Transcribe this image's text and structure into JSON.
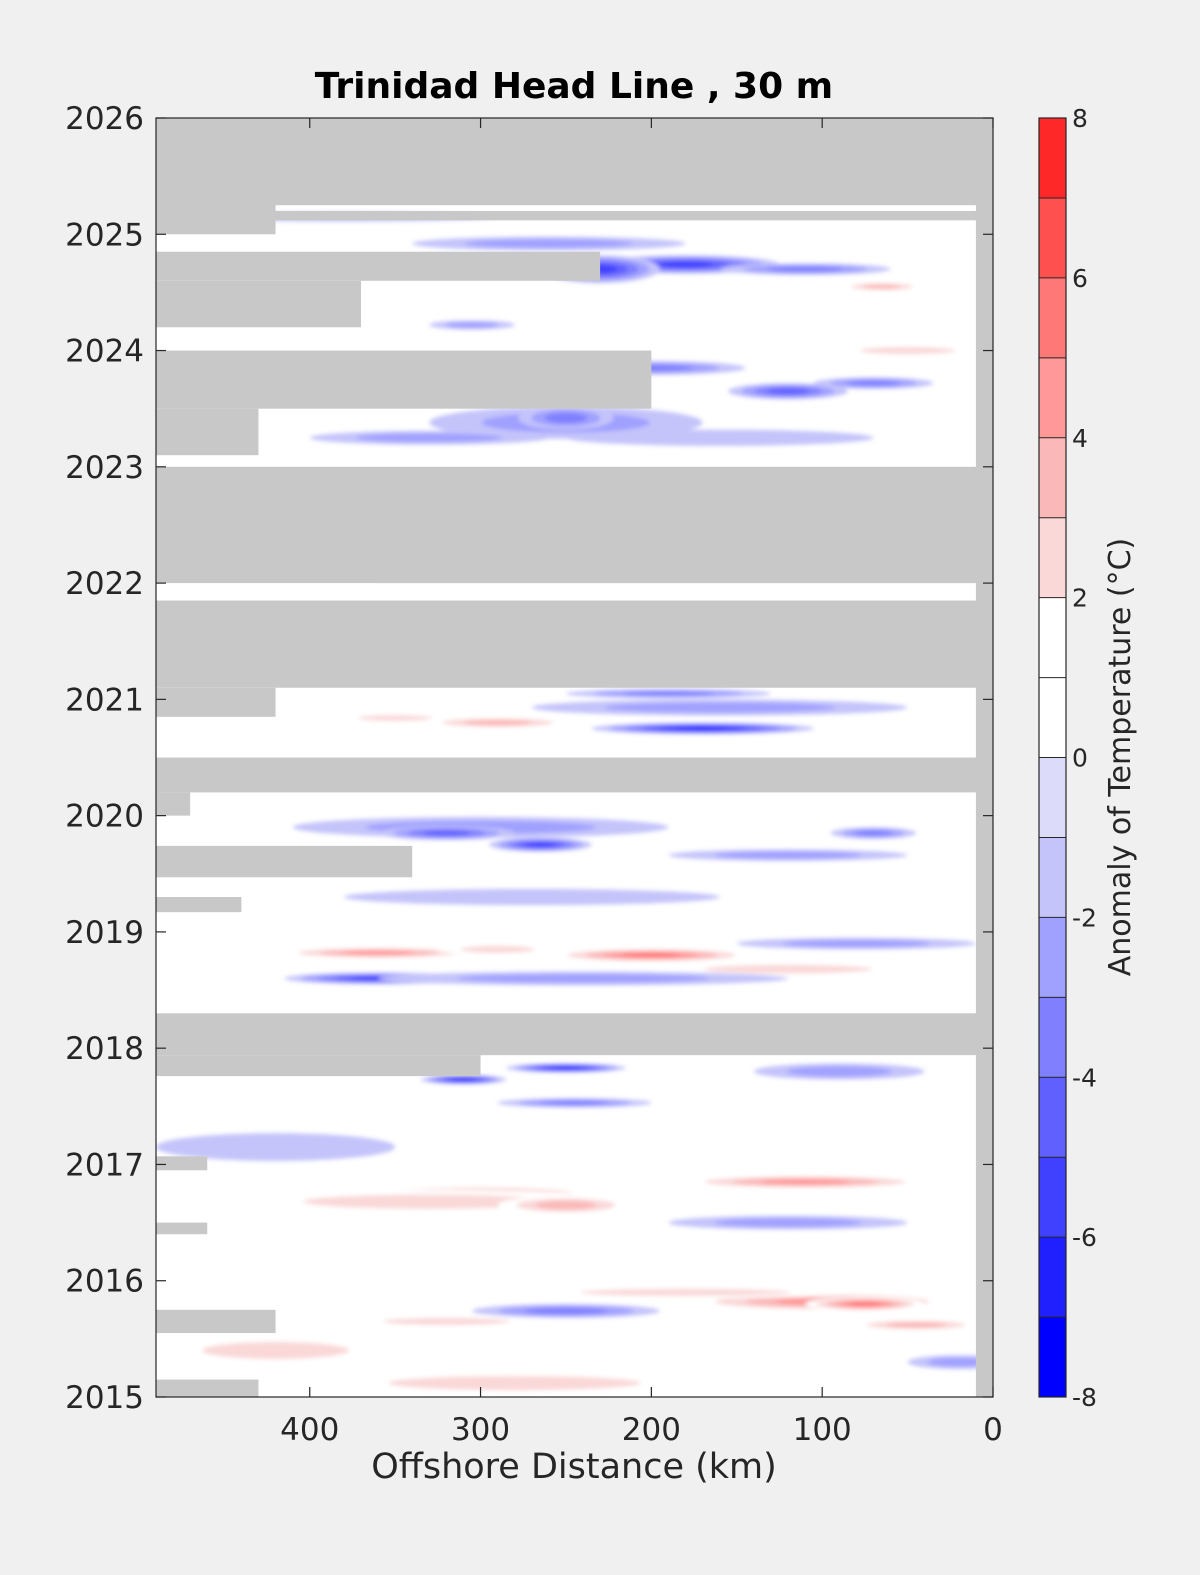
{
  "chart_data": {
    "type": "heatmap",
    "title": "Trinidad Head Line , 30 m",
    "xlabel": "Offshore Distance (km)",
    "ylabel": "",
    "colorbar_label": "Anomaly of Temperature (°C)",
    "xlim": [
      490,
      0
    ],
    "x_reversed": true,
    "ylim": [
      2015,
      2026
    ],
    "xticks": [
      400,
      300,
      200,
      100,
      0
    ],
    "yticks": [
      2015,
      2016,
      2017,
      2018,
      2019,
      2020,
      2021,
      2022,
      2023,
      2024,
      2025,
      2026
    ],
    "colorbar": {
      "range": [
        -8,
        8
      ],
      "ticks": [
        -8,
        -6,
        -4,
        -2,
        0,
        2,
        4,
        6,
        8
      ],
      "levels": [
        -8,
        -7,
        -6,
        -5,
        -4,
        -3,
        -2,
        -1,
        0,
        1,
        2,
        3,
        4,
        5,
        6,
        7,
        8
      ],
      "colors": [
        "#0000ff",
        "#2020ff",
        "#4040ff",
        "#6060ff",
        "#8080ff",
        "#a0a0ff",
        "#c4c4fb",
        "#dcdcfa",
        "#ffffff",
        "#ffffff",
        "#fad8d8",
        "#fbb8b8",
        "#ff9898",
        "#ff7878",
        "#ff5050",
        "#ff2828",
        "#ff0000"
      ]
    },
    "no_data_color": "#c8c8c8",
    "no_data_regions": [
      {
        "t0": 2025.25,
        "t1": 2026.0,
        "x0": 490,
        "x1": 0
      },
      {
        "t0": 2025.0,
        "t1": 2025.3,
        "x0": 490,
        "x1": 420
      },
      {
        "t0": 2025.12,
        "t1": 2025.2,
        "x0": 420,
        "x1": 0
      },
      {
        "t0": 2024.6,
        "t1": 2024.85,
        "x0": 490,
        "x1": 230
      },
      {
        "t0": 2024.2,
        "t1": 2024.6,
        "x0": 490,
        "x1": 370
      },
      {
        "t0": 2023.5,
        "t1": 2024.0,
        "x0": 490,
        "x1": 200
      },
      {
        "t0": 2023.1,
        "t1": 2023.5,
        "x0": 490,
        "x1": 430
      },
      {
        "t0": 2022.0,
        "t1": 2023.0,
        "x0": 490,
        "x1": 0
      },
      {
        "t0": 2022.0,
        "t1": 2022.05,
        "x0": 360,
        "x1": 0
      },
      {
        "t0": 2021.1,
        "t1": 2021.85,
        "x0": 490,
        "x1": 0
      },
      {
        "t0": 2020.85,
        "t1": 2021.1,
        "x0": 490,
        "x1": 420
      },
      {
        "t0": 2020.2,
        "t1": 2020.5,
        "x0": 490,
        "x1": 0
      },
      {
        "t0": 2020.0,
        "t1": 2020.2,
        "x0": 490,
        "x1": 470
      },
      {
        "t0": 2019.47,
        "t1": 2019.74,
        "x0": 490,
        "x1": 340
      },
      {
        "t0": 2019.17,
        "t1": 2019.3,
        "x0": 490,
        "x1": 440
      },
      {
        "t0": 2017.94,
        "t1": 2018.3,
        "x0": 490,
        "x1": 0
      },
      {
        "t0": 2017.76,
        "t1": 2017.94,
        "x0": 490,
        "x1": 300
      },
      {
        "t0": 2016.95,
        "t1": 2017.07,
        "x0": 490,
        "x1": 460
      },
      {
        "t0": 2016.4,
        "t1": 2016.5,
        "x0": 490,
        "x1": 460
      },
      {
        "t0": 2015.55,
        "t1": 2015.75,
        "x0": 490,
        "x1": 420
      },
      {
        "t0": 2015.0,
        "t1": 2015.15,
        "x0": 490,
        "x1": 430
      },
      {
        "t0": 2015.0,
        "t1": 2026.0,
        "x0": 10,
        "x1": 0
      }
    ],
    "anomaly_blobs": [
      {
        "x": 380,
        "t": 2025.15,
        "rx": 90,
        "rt": 0.04,
        "v": -1
      },
      {
        "x": 260,
        "t": 2024.92,
        "rx": 80,
        "rt": 0.06,
        "v": -2
      },
      {
        "x": 180,
        "t": 2024.74,
        "rx": 55,
        "rt": 0.08,
        "v": -5
      },
      {
        "x": 230,
        "t": 2024.7,
        "rx": 35,
        "rt": 0.12,
        "v": -5
      },
      {
        "x": 110,
        "t": 2024.7,
        "rx": 50,
        "rt": 0.05,
        "v": -3
      },
      {
        "x": 65,
        "t": 2024.55,
        "rx": 25,
        "rt": 0.04,
        "v": 3
      },
      {
        "x": 305,
        "t": 2024.22,
        "rx": 25,
        "rt": 0.04,
        "v": -2
      },
      {
        "x": 50,
        "t": 2024.0,
        "rx": 45,
        "rt": 0.05,
        "v": 2
      },
      {
        "x": 200,
        "t": 2023.85,
        "rx": 55,
        "rt": 0.06,
        "v": -3
      },
      {
        "x": 120,
        "t": 2023.65,
        "rx": 35,
        "rt": 0.07,
        "v": -4
      },
      {
        "x": 70,
        "t": 2023.72,
        "rx": 35,
        "rt": 0.05,
        "v": -3
      },
      {
        "x": 250,
        "t": 2023.38,
        "rx": 80,
        "rt": 0.14,
        "v": -2
      },
      {
        "x": 330,
        "t": 2023.25,
        "rx": 70,
        "rt": 0.06,
        "v": -2
      },
      {
        "x": 160,
        "t": 2023.25,
        "rx": 90,
        "rt": 0.07,
        "v": -1
      },
      {
        "x": 250,
        "t": 2023.42,
        "rx": 28,
        "rt": 0.1,
        "v": -3
      },
      {
        "x": 80,
        "t": 2021.65,
        "rx": 35,
        "rt": 0.06,
        "v": -3
      },
      {
        "x": 190,
        "t": 2021.05,
        "rx": 60,
        "rt": 0.04,
        "v": -3
      },
      {
        "x": 160,
        "t": 2020.93,
        "rx": 110,
        "rt": 0.07,
        "v": -2
      },
      {
        "x": 170,
        "t": 2020.75,
        "rx": 65,
        "rt": 0.05,
        "v": -6
      },
      {
        "x": 350,
        "t": 2020.84,
        "rx": 35,
        "rt": 0.04,
        "v": 2
      },
      {
        "x": 290,
        "t": 2020.8,
        "rx": 45,
        "rt": 0.05,
        "v": 3
      },
      {
        "x": 300,
        "t": 2019.9,
        "rx": 110,
        "rt": 0.09,
        "v": -2
      },
      {
        "x": 320,
        "t": 2019.85,
        "rx": 40,
        "rt": 0.06,
        "v": -4
      },
      {
        "x": 265,
        "t": 2019.75,
        "rx": 30,
        "rt": 0.06,
        "v": -5
      },
      {
        "x": 120,
        "t": 2019.66,
        "rx": 70,
        "rt": 0.05,
        "v": -2
      },
      {
        "x": 70,
        "t": 2019.85,
        "rx": 25,
        "rt": 0.05,
        "v": -3
      },
      {
        "x": 270,
        "t": 2019.3,
        "rx": 110,
        "rt": 0.07,
        "v": -1
      },
      {
        "x": 360,
        "t": 2018.82,
        "rx": 60,
        "rt": 0.05,
        "v": 4
      },
      {
        "x": 200,
        "t": 2018.8,
        "rx": 60,
        "rt": 0.06,
        "v": 5
      },
      {
        "x": 290,
        "t": 2018.85,
        "rx": 35,
        "rt": 0.05,
        "v": 2
      },
      {
        "x": 120,
        "t": 2018.68,
        "rx": 80,
        "rt": 0.06,
        "v": 2
      },
      {
        "x": 80,
        "t": 2018.9,
        "rx": 70,
        "rt": 0.05,
        "v": -2
      },
      {
        "x": 360,
        "t": 2018.6,
        "rx": 55,
        "rt": 0.05,
        "v": -5
      },
      {
        "x": 270,
        "t": 2018.6,
        "rx": 55,
        "rt": 0.05,
        "v": -4
      },
      {
        "x": 240,
        "t": 2018.6,
        "rx": 120,
        "rt": 0.06,
        "v": -2
      },
      {
        "x": 250,
        "t": 2017.83,
        "rx": 35,
        "rt": 0.04,
        "v": -6
      },
      {
        "x": 310,
        "t": 2017.73,
        "rx": 25,
        "rt": 0.04,
        "v": -6
      },
      {
        "x": 245,
        "t": 2017.53,
        "rx": 45,
        "rt": 0.04,
        "v": -3
      },
      {
        "x": 90,
        "t": 2017.8,
        "rx": 50,
        "rt": 0.07,
        "v": -2
      },
      {
        "x": 420,
        "t": 2017.15,
        "rx": 70,
        "rt": 0.12,
        "v": -1
      },
      {
        "x": 110,
        "t": 2016.85,
        "rx": 75,
        "rt": 0.06,
        "v": 4
      },
      {
        "x": 300,
        "t": 2016.75,
        "rx": 75,
        "rt": 0.07,
        "v": 3
      },
      {
        "x": 330,
        "t": 2016.68,
        "rx": 120,
        "rt": 0.1,
        "v": 2
      },
      {
        "x": 250,
        "t": 2016.65,
        "rx": 40,
        "rt": 0.08,
        "v": 3
      },
      {
        "x": 120,
        "t": 2016.5,
        "rx": 70,
        "rt": 0.06,
        "v": -2
      },
      {
        "x": 100,
        "t": 2015.82,
        "rx": 80,
        "rt": 0.08,
        "v": 4
      },
      {
        "x": 75,
        "t": 2015.8,
        "rx": 35,
        "rt": 0.06,
        "v": 5
      },
      {
        "x": 180,
        "t": 2015.9,
        "rx": 100,
        "rt": 0.05,
        "v": 2
      },
      {
        "x": 250,
        "t": 2015.74,
        "rx": 55,
        "rt": 0.06,
        "v": -3
      },
      {
        "x": 45,
        "t": 2015.62,
        "rx": 40,
        "rt": 0.05,
        "v": 3
      },
      {
        "x": 320,
        "t": 2015.65,
        "rx": 60,
        "rt": 0.05,
        "v": 2
      },
      {
        "x": 280,
        "t": 2015.12,
        "rx": 120,
        "rt": 0.1,
        "v": 2
      },
      {
        "x": 420,
        "t": 2015.4,
        "rx": 70,
        "rt": 0.12,
        "v": 2
      },
      {
        "x": 20,
        "t": 2015.3,
        "rx": 30,
        "rt": 0.06,
        "v": -2
      }
    ]
  }
}
